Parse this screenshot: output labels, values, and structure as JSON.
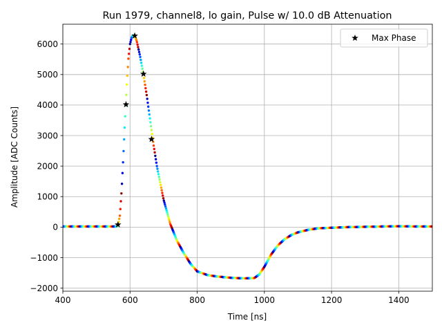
{
  "chart_data": {
    "type": "scatter",
    "title": "Run 1979, channel8, lo gain, Pulse w/ 10.0 dB Attenuation",
    "xlabel": "Time [ns]",
    "ylabel": "Amplitude [ADC Counts]",
    "xlim": [
      400,
      1500
    ],
    "ylim": [
      -2100,
      6650
    ],
    "xticks": [
      400,
      600,
      800,
      1000,
      1200,
      1400
    ],
    "yticks": [
      -2000,
      -1000,
      0,
      1000,
      2000,
      3000,
      4000,
      5000,
      6000
    ],
    "grid": true,
    "legend": {
      "placement": "top-right",
      "entries": [
        "Max Phase"
      ]
    },
    "colormap": "jet",
    "series": [
      {
        "name": "",
        "kind": "pulse",
        "x": [
          400,
          560,
          565,
          570,
          575,
          580,
          585,
          590,
          595,
          600,
          605,
          610,
          614,
          620,
          630,
          640,
          650,
          660,
          670,
          680,
          700,
          720,
          740,
          760,
          780,
          800,
          830,
          860,
          900,
          940,
          970,
          985,
          1000,
          1020,
          1040,
          1060,
          1080,
          1100,
          1130,
          1160,
          1200,
          1250,
          1300,
          1350,
          1400,
          1450,
          1500
        ],
        "y": [
          20,
          20,
          80,
          400,
          1200,
          2300,
          3500,
          4600,
          5500,
          6000,
          6220,
          6290,
          6270,
          6100,
          5600,
          5000,
          4300,
          3500,
          2700,
          2000,
          900,
          100,
          -450,
          -850,
          -1200,
          -1450,
          -1570,
          -1620,
          -1660,
          -1680,
          -1670,
          -1550,
          -1300,
          -900,
          -600,
          -400,
          -260,
          -170,
          -90,
          -40,
          -20,
          0,
          10,
          20,
          30,
          20,
          20
        ]
      },
      {
        "name": "Max Phase",
        "kind": "markers",
        "marker": "star",
        "color": "#000000",
        "x": [
          564,
          588,
          614,
          640,
          664
        ],
        "y": [
          80,
          4020,
          6270,
          5020,
          2880
        ]
      }
    ]
  }
}
